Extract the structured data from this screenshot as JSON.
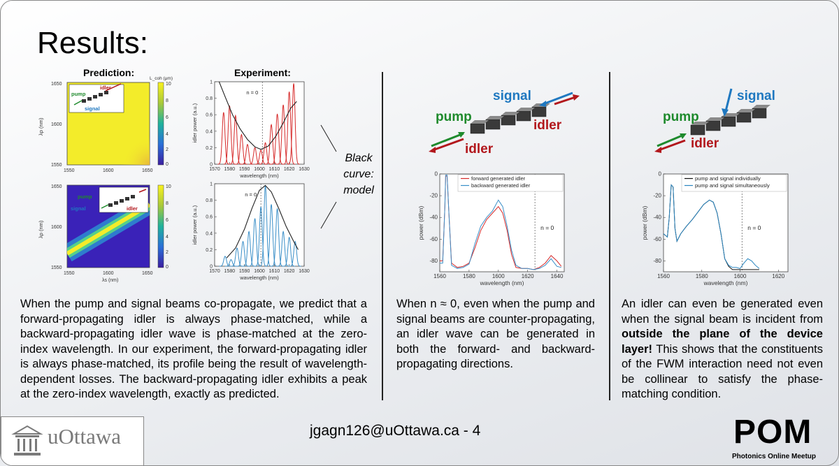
{
  "slide": {
    "title": "Results:",
    "footer_email": "jgagn126@uOttawa.ca - 4",
    "institution_logo_text": "uOttawa",
    "pom_logo_letters": "POM",
    "pom_logo_subtitle": "Photonics Online Meetup"
  },
  "left_panel": {
    "prediction_label": "Prediction:",
    "experiment_label": "Experiment:",
    "colorbar_label": "L_coh (μm)",
    "colorbar_ticks": [
      "10",
      "8",
      "6",
      "4",
      "2",
      "0"
    ],
    "map_xlabel": "λs (nm)",
    "map_ylabel": "λp (nm)",
    "map_xticks": [
      "1550",
      "1600",
      "1650"
    ],
    "map_yticks": [
      "1650",
      "1600",
      "1550"
    ],
    "inset_top": {
      "pump": "pump",
      "idler": "idler",
      "signal": "signal"
    },
    "inset_bottom": {
      "pump": "pump",
      "idler": "idler",
      "signal": "signal"
    },
    "model_note": [
      "Black",
      "curve:",
      "model"
    ],
    "paragraph": "When the pump and signal beams co-propagate, we predict that a forward-propagating idler is always phase-matched, while a backward-propagating idler wave is phase-matched at the zero-index wavelength. In our experiment, the forward-propagating idler is always phase-matched, its profile being the result of wavelength-dependent losses. The backward-propagating idler exhibits a peak at the zero-index wavelength, exactly as predicted."
  },
  "middle_panel": {
    "diagram": {
      "signal": "signal",
      "pump": "pump",
      "idler_right": "idler",
      "idler_left": "idler"
    },
    "paragraph": "When n ≈ 0, even when the pump and signal beams are counter-propagating, an idler wave can be generated in both the forward- and backward-propagating directions."
  },
  "right_panel": {
    "diagram": {
      "signal": "signal",
      "pump": "pump",
      "idler": "idler"
    },
    "paragraph_before": "An idler can even be generated even when the signal beam is incident from ",
    "paragraph_bold": "outside the plane of the device layer!",
    "paragraph_after": " This shows that the constituents of the FWM interaction need not even be collinear to satisfy the phase-matching condition."
  },
  "colors": {
    "red": "#d62a2a",
    "blue": "#3a8fc8",
    "green": "#1e8a2c",
    "signal_blue": "#1f78c0",
    "idler_red": "#b2171c"
  },
  "chart_data": [
    {
      "id": "exp-forward",
      "type": "line",
      "title": "",
      "xlabel": "wavelength (nm)",
      "ylabel": "idler power (a.u.)",
      "xlim": [
        1570,
        1630
      ],
      "ylim": [
        0,
        1
      ],
      "xticks": [
        1570,
        1580,
        1590,
        1600,
        1610,
        1620,
        1630
      ],
      "yticks": [
        0,
        0.2,
        0.4,
        0.6,
        0.8,
        1
      ],
      "annotation": "n = 0",
      "annotation_x": 1602,
      "peak_color": "#d62a2a",
      "peaks": [
        {
          "center": 1576,
          "height": 0.63
        },
        {
          "center": 1580,
          "height": 0.71
        },
        {
          "center": 1584,
          "height": 0.59
        },
        {
          "center": 1588,
          "height": 0.36
        },
        {
          "center": 1592,
          "height": 0.24
        },
        {
          "center": 1597,
          "height": 0.2
        },
        {
          "center": 1601,
          "height": 0.17
        },
        {
          "center": 1604,
          "height": 0.26
        },
        {
          "center": 1608,
          "height": 0.48
        },
        {
          "center": 1612,
          "height": 0.61
        },
        {
          "center": 1616,
          "height": 0.72
        },
        {
          "center": 1620,
          "height": 0.88
        },
        {
          "center": 1623,
          "height": 0.98
        }
      ],
      "model": {
        "x": [
          1573,
          1577,
          1582,
          1587,
          1592,
          1597,
          1601,
          1606,
          1611,
          1616,
          1621,
          1625
        ],
        "y": [
          1.0,
          0.82,
          0.6,
          0.43,
          0.3,
          0.21,
          0.18,
          0.22,
          0.34,
          0.5,
          0.68,
          0.76
        ]
      }
    },
    {
      "id": "exp-backward",
      "type": "line",
      "title": "",
      "xlabel": "wavelength (nm)",
      "ylabel": "idler power (a.u.)",
      "xlim": [
        1570,
        1630
      ],
      "ylim": [
        0,
        1
      ],
      "xticks": [
        1570,
        1580,
        1590,
        1600,
        1610,
        1620,
        1630
      ],
      "yticks": [
        0,
        0.2,
        0.4,
        0.6,
        0.8,
        1
      ],
      "annotation": "n = 0",
      "annotation_x": 1601,
      "peak_color": "#3a8fc8",
      "peaks": [
        {
          "center": 1577,
          "height": 0.12
        },
        {
          "center": 1581,
          "height": 0.08
        },
        {
          "center": 1585,
          "height": 0.22
        },
        {
          "center": 1589,
          "height": 0.3
        },
        {
          "center": 1593,
          "height": 0.42
        },
        {
          "center": 1597,
          "height": 0.58
        },
        {
          "center": 1601,
          "height": 0.72
        },
        {
          "center": 1604,
          "height": 0.98
        },
        {
          "center": 1608,
          "height": 0.75
        },
        {
          "center": 1612,
          "height": 0.7
        },
        {
          "center": 1616,
          "height": 0.42
        },
        {
          "center": 1620,
          "height": 0.35
        },
        {
          "center": 1624,
          "height": 0.3
        }
      ],
      "model": {
        "x": [
          1578,
          1584,
          1590,
          1595,
          1600,
          1604,
          1608,
          1613,
          1618,
          1623,
          1626
        ],
        "y": [
          0.1,
          0.22,
          0.45,
          0.7,
          0.92,
          0.98,
          0.9,
          0.7,
          0.48,
          0.3,
          0.2
        ]
      }
    },
    {
      "id": "counter-spectrum",
      "type": "line",
      "title": "",
      "xlabel": "wavelength (nm)",
      "ylabel": "power (dBm)",
      "xlim": [
        1560,
        1645
      ],
      "ylim": [
        -90,
        0
      ],
      "xticks": [
        1560,
        1580,
        1600,
        1620,
        1640
      ],
      "yticks": [
        0,
        -20,
        -40,
        -60,
        -80
      ],
      "annotation": "n = 0",
      "annotation_x": 1625,
      "legend": [
        "forward generated idler",
        "backward generated idler"
      ],
      "series": [
        {
          "name": "forward generated idler",
          "color": "#d62a2a",
          "x": [
            1560,
            1562,
            1563.5,
            1564,
            1565,
            1566,
            1568,
            1572,
            1576,
            1580,
            1584,
            1588,
            1592,
            1596,
            1600,
            1603,
            1606,
            1609,
            1612,
            1616,
            1620,
            1624,
            1628,
            1632,
            1636,
            1640,
            1643
          ],
          "y": [
            -80,
            -80,
            -30,
            -2,
            -2,
            -30,
            -82,
            -86,
            -85,
            -82,
            -68,
            -52,
            -42,
            -36,
            -30,
            -36,
            -52,
            -74,
            -86,
            -87,
            -87,
            -88,
            -86,
            -82,
            -75,
            -80,
            -85
          ]
        },
        {
          "name": "backward generated idler",
          "color": "#3a8fc8",
          "x": [
            1560,
            1562,
            1563.5,
            1564,
            1565,
            1566,
            1568,
            1572,
            1576,
            1580,
            1584,
            1588,
            1592,
            1596,
            1600,
            1603,
            1606,
            1609,
            1612,
            1616,
            1620,
            1624,
            1628,
            1632,
            1636,
            1640,
            1643
          ],
          "y": [
            -82,
            -82,
            -30,
            -1,
            -1,
            -30,
            -84,
            -87,
            -86,
            -83,
            -64,
            -48,
            -40,
            -34,
            -24,
            -30,
            -48,
            -70,
            -84,
            -87,
            -87,
            -88,
            -87,
            -84,
            -78,
            -85,
            -86
          ]
        }
      ]
    },
    {
      "id": "outofplane-spectrum",
      "type": "line",
      "title": "",
      "xlabel": "wavelength (nm)",
      "ylabel": "power (dBm)",
      "xlim": [
        1560,
        1625
      ],
      "ylim": [
        -90,
        0
      ],
      "xticks": [
        1560,
        1580,
        1600,
        1620
      ],
      "yticks": [
        0,
        -20,
        -40,
        -60,
        -80
      ],
      "annotation": "n = 0",
      "annotation_x": 1601,
      "legend": [
        "pump and signal individually",
        "pump and signal simultaneously"
      ],
      "series": [
        {
          "name": "pump and signal individually",
          "color": "#111111",
          "x": [
            1560,
            1562,
            1563,
            1564,
            1565,
            1566,
            1567,
            1569,
            1572,
            1575,
            1578,
            1581,
            1584,
            1586,
            1588,
            1590,
            1592,
            1594,
            1596,
            1598,
            1600,
            1602,
            1604,
            1606,
            1608,
            1610
          ],
          "y": [
            -55,
            -58,
            -40,
            -10,
            -12,
            -50,
            -62,
            -55,
            -48,
            -42,
            -35,
            -28,
            -24,
            -26,
            -36,
            -55,
            -78,
            -85,
            -88,
            -88,
            -88,
            -88,
            -88,
            -88,
            -88,
            -88
          ]
        },
        {
          "name": "pump and signal simultaneously",
          "color": "#2a86c0",
          "x": [
            1560,
            1562,
            1563,
            1564,
            1565,
            1566,
            1567,
            1569,
            1572,
            1575,
            1578,
            1581,
            1584,
            1586,
            1588,
            1590,
            1592,
            1594,
            1596,
            1598,
            1600,
            1602,
            1604,
            1606,
            1608,
            1610
          ],
          "y": [
            -55,
            -58,
            -40,
            -10,
            -12,
            -50,
            -62,
            -55,
            -48,
            -42,
            -35,
            -28,
            -24,
            -26,
            -36,
            -55,
            -78,
            -84,
            -86,
            -86,
            -87,
            -82,
            -78,
            -80,
            -84,
            -87
          ]
        }
      ]
    }
  ]
}
